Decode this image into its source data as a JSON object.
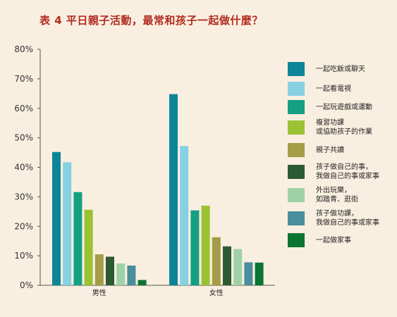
{
  "title": "表 4 平日親子活動，最常和孩子一起做什麼？",
  "chart_data": {
    "type": "bar",
    "title": "表 4 平日親子活動，最常和孩子一起做什麼？",
    "categories": [
      "男性",
      "女性"
    ],
    "y_ticks": [
      "0%",
      "10%",
      "20%",
      "30%",
      "40%",
      "50%",
      "60%",
      "70%",
      "80%"
    ],
    "ylim": [
      0,
      80
    ],
    "ylabel": "",
    "xlabel": "",
    "legend_position": "right",
    "grid": false,
    "series": [
      {
        "name": "一起吃飯或聊天",
        "color": "#0e8499",
        "values": [
          45.2,
          64.8
        ]
      },
      {
        "name": "一起看電視",
        "color": "#86d0e2",
        "values": [
          41.7,
          47.2
        ]
      },
      {
        "name": "一起玩遊戲或運動",
        "color": "#14a082",
        "values": [
          31.6,
          25.4
        ]
      },
      {
        "name": "複習功課\n或協助孩子的作業",
        "color": "#9ac233",
        "values": [
          25.6,
          27.0
        ]
      },
      {
        "name": "親子共讀",
        "color": "#a49c46",
        "values": [
          10.5,
          16.3
        ]
      },
      {
        "name": "孩子做自己的事，\n我做自己的事或家事",
        "color": "#2c5a32",
        "values": [
          9.7,
          13.2
        ]
      },
      {
        "name": "外出玩樂，\n如踏青、逛街",
        "color": "#9ed2a6",
        "values": [
          7.4,
          12.3
        ]
      },
      {
        "name": "孩子做功課，\n我做自己的事或家事",
        "color": "#488e9c",
        "values": [
          6.7,
          7.8
        ]
      },
      {
        "name": "一起做家事",
        "color": "#0a7432",
        "values": [
          1.8,
          7.7
        ]
      }
    ]
  }
}
